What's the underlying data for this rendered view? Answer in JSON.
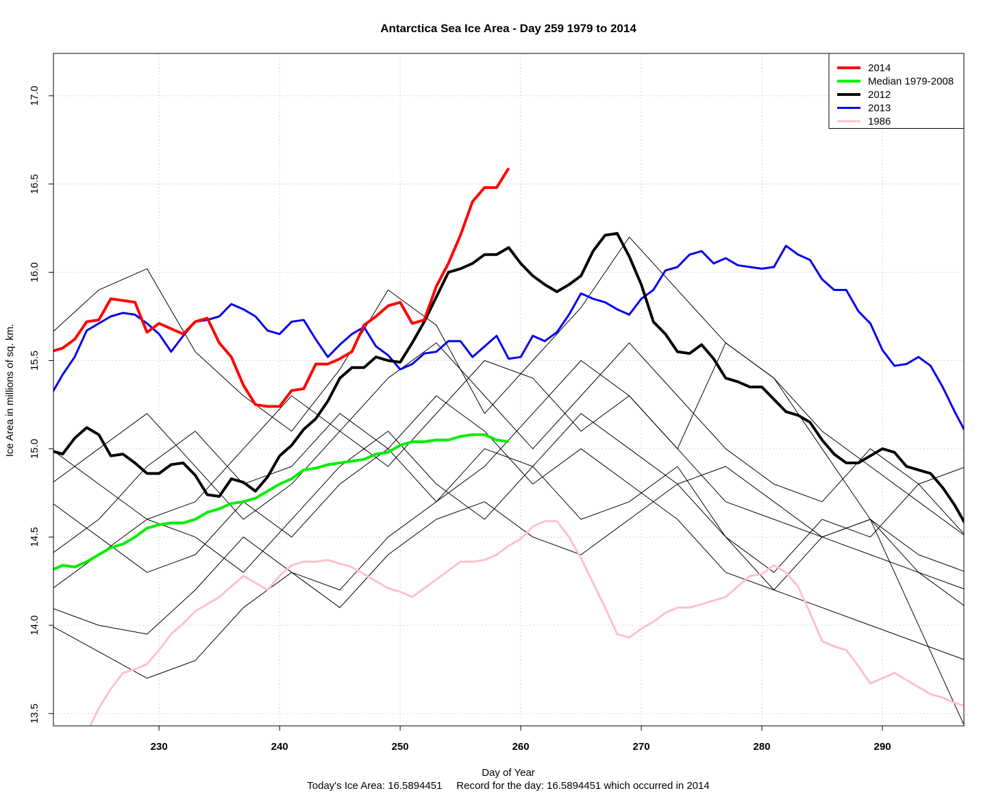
{
  "chart_data": {
    "type": "line",
    "title": "Antarctica Sea Ice Area - Day 259 1979 to 2014",
    "xlabel": "Day of Year",
    "ylabel": "Ice Area in millions of sq. km.",
    "subtitle": "Today's Ice Area: 16.5894451     Record for the day: 16.5894451 which occurred in 2014",
    "xlim": [
      221.24,
      296.76
    ],
    "ylim": [
      13.43,
      17.24
    ],
    "xticks": [
      230,
      240,
      250,
      260,
      270,
      280,
      290
    ],
    "yticks": [
      13.5,
      {
        "value": 14,
        "label": "14.0"
      },
      14.5,
      {
        "value": 15,
        "label": "15.0"
      },
      15.5,
      {
        "value": 16,
        "label": "16.0"
      },
      16.5,
      {
        "value": 17,
        "label": "17.0"
      }
    ],
    "grid": true,
    "legend": "top-right",
    "x": [
      221,
      222,
      223,
      224,
      225,
      226,
      227,
      228,
      229,
      230,
      231,
      232,
      233,
      234,
      235,
      236,
      237,
      238,
      239,
      240,
      241,
      242,
      243,
      244,
      245,
      246,
      247,
      248,
      249,
      250,
      251,
      252,
      253,
      254,
      255,
      256,
      257,
      258,
      259,
      260,
      261,
      262,
      263,
      264,
      265,
      266,
      267,
      268,
      269,
      270,
      271,
      272,
      273,
      274,
      275,
      276,
      277,
      278,
      279,
      280,
      281,
      282,
      283,
      284,
      285,
      286,
      287,
      288,
      289,
      290,
      291,
      292,
      293,
      294,
      295,
      296,
      297
    ],
    "background_series": [
      {
        "color": "#000000",
        "x": [
          221,
          225,
          229,
          233,
          237,
          241,
          245,
          249,
          253,
          257,
          261,
          265,
          269,
          273,
          277,
          281,
          285,
          289,
          293,
          297
        ],
        "values": [
          15.65,
          15.9,
          16.02,
          15.55,
          15.3,
          15.1,
          15.45,
          15.9,
          15.7,
          15.2,
          15.5,
          15.8,
          16.2,
          15.9,
          15.6,
          15.4,
          15.1,
          14.9,
          14.7,
          14.5
        ]
      },
      {
        "color": "#000000",
        "x": [
          221,
          225,
          229,
          233,
          237,
          241,
          245,
          249,
          253,
          257,
          261,
          265,
          269,
          273,
          277,
          281,
          285,
          289,
          293,
          297
        ],
        "values": [
          15.0,
          14.8,
          14.6,
          14.7,
          15.0,
          15.3,
          15.1,
          14.9,
          15.2,
          15.5,
          15.4,
          15.1,
          15.3,
          15.0,
          14.7,
          14.6,
          14.5,
          14.4,
          14.3,
          14.2
        ]
      },
      {
        "color": "#000000",
        "x": [
          221,
          225,
          229,
          233,
          237,
          241,
          245,
          249,
          253,
          257,
          261,
          265,
          269,
          273,
          277,
          281,
          285,
          289,
          293,
          297
        ],
        "values": [
          14.2,
          14.4,
          14.6,
          14.5,
          14.3,
          14.6,
          14.9,
          15.1,
          14.8,
          14.6,
          14.9,
          15.2,
          15.0,
          14.8,
          14.9,
          14.7,
          14.5,
          14.6,
          14.3,
          14.1
        ]
      },
      {
        "color": "#000000",
        "x": [
          221,
          225,
          229,
          233,
          237,
          241,
          245,
          249,
          253,
          257,
          261,
          265,
          269,
          273,
          277,
          281,
          285,
          289,
          293,
          297
        ],
        "values": [
          14.0,
          13.85,
          13.7,
          13.8,
          14.1,
          14.3,
          14.2,
          14.5,
          14.7,
          14.9,
          15.2,
          15.5,
          15.3,
          15.0,
          15.6,
          15.4,
          15.0,
          14.6,
          14.0,
          13.4
        ]
      },
      {
        "color": "#000000",
        "x": [
          221,
          225,
          229,
          233,
          237,
          241,
          245,
          249,
          253,
          257,
          261,
          265,
          269,
          273,
          277,
          281,
          285,
          289,
          293,
          297
        ],
        "values": [
          14.7,
          14.5,
          14.3,
          14.4,
          14.7,
          14.5,
          14.8,
          15.0,
          14.7,
          15.0,
          14.9,
          14.6,
          14.7,
          14.9,
          14.5,
          14.3,
          14.6,
          14.5,
          14.8,
          14.9
        ]
      },
      {
        "color": "#000000",
        "x": [
          221,
          225,
          229,
          233,
          237,
          241,
          245,
          249,
          253,
          257,
          261,
          265,
          269,
          273,
          277,
          281,
          285,
          289,
          293,
          297
        ],
        "values": [
          14.4,
          14.6,
          14.9,
          15.1,
          14.8,
          14.9,
          15.2,
          15.0,
          15.3,
          15.1,
          14.8,
          15.0,
          14.8,
          14.6,
          14.3,
          14.2,
          14.1,
          14.0,
          13.9,
          13.8
        ]
      },
      {
        "color": "#000000",
        "x": [
          221,
          225,
          229,
          233,
          237,
          241,
          245,
          249,
          253,
          257,
          261,
          265,
          269,
          273,
          277,
          281,
          285,
          289,
          293,
          297
        ],
        "values": [
          14.1,
          14.0,
          13.95,
          14.2,
          14.5,
          14.3,
          14.1,
          14.4,
          14.6,
          14.7,
          14.5,
          14.4,
          14.6,
          14.8,
          14.5,
          14.2,
          14.5,
          14.6,
          14.4,
          14.3
        ]
      },
      {
        "color": "#000000",
        "x": [
          221,
          225,
          229,
          233,
          237,
          241,
          245,
          249,
          253,
          257,
          261,
          265,
          269,
          273,
          277,
          281,
          285,
          289,
          293,
          297
        ],
        "values": [
          14.8,
          15.0,
          15.2,
          14.9,
          14.6,
          14.8,
          15.1,
          15.4,
          15.6,
          15.3,
          15.0,
          15.3,
          15.6,
          15.3,
          15.0,
          14.8,
          14.7,
          15.0,
          14.8,
          14.5
        ]
      }
    ],
    "series": [
      {
        "name": "2014",
        "color": "#ff0000",
        "width": 4,
        "values": [
          15.55,
          15.57,
          15.62,
          15.72,
          15.73,
          15.85,
          15.84,
          15.83,
          15.66,
          15.71,
          15.68,
          15.65,
          15.72,
          15.74,
          15.6,
          15.52,
          15.36,
          15.25,
          15.24,
          15.24,
          15.33,
          15.34,
          15.48,
          15.48,
          15.51,
          15.55,
          15.7,
          15.75,
          15.81,
          15.83,
          15.71,
          15.73,
          15.92,
          16.05,
          16.21,
          16.4,
          16.48,
          16.48,
          16.5894451,
          null,
          null,
          null,
          null,
          null,
          null,
          null,
          null,
          null,
          null,
          null,
          null,
          null,
          null,
          null,
          null,
          null,
          null,
          null,
          null,
          null,
          null,
          null,
          null,
          null,
          null,
          null,
          null,
          null,
          null,
          null,
          null,
          null,
          null,
          null,
          null,
          null,
          null
        ]
      },
      {
        "name": "Median 1979-2008",
        "color": "#00ee00",
        "width": 4,
        "values": [
          14.31,
          14.34,
          14.33,
          14.36,
          14.4,
          14.44,
          14.46,
          14.5,
          14.55,
          14.57,
          14.58,
          14.58,
          14.6,
          14.64,
          14.66,
          14.69,
          14.7,
          14.72,
          14.76,
          14.8,
          14.83,
          14.88,
          14.89,
          14.91,
          14.92,
          14.93,
          14.94,
          14.97,
          14.98,
          15.02,
          15.04,
          15.04,
          15.05,
          15.05,
          15.07,
          15.08,
          15.08,
          15.05,
          15.04,
          null,
          null,
          null,
          null,
          null,
          null,
          null,
          null,
          null,
          null,
          null,
          null,
          null,
          null,
          null,
          null,
          null,
          null,
          null,
          null,
          null,
          null,
          null,
          null,
          null,
          null,
          null,
          null,
          null,
          null,
          null,
          null,
          null,
          null,
          null,
          null,
          null,
          null
        ]
      },
      {
        "name": "2012",
        "color": "#000000",
        "width": 4,
        "values": [
          14.99,
          14.97,
          15.06,
          15.12,
          15.08,
          14.96,
          14.97,
          14.92,
          14.86,
          14.86,
          14.91,
          14.92,
          14.85,
          14.74,
          14.73,
          14.83,
          14.81,
          14.76,
          14.84,
          14.96,
          15.02,
          15.11,
          15.17,
          15.27,
          15.4,
          15.46,
          15.46,
          15.52,
          15.5,
          15.49,
          15.6,
          15.72,
          15.86,
          16.0,
          16.02,
          16.05,
          16.1,
          16.1,
          16.14,
          16.05,
          15.98,
          15.93,
          15.89,
          15.93,
          15.98,
          16.12,
          16.21,
          16.22,
          16.09,
          15.93,
          15.72,
          15.65,
          15.55,
          15.54,
          15.59,
          15.51,
          15.4,
          15.38,
          15.35,
          15.35,
          15.28,
          15.21,
          15.19,
          15.15,
          15.05,
          14.97,
          14.92,
          14.92,
          14.96,
          15.0,
          14.98,
          14.9,
          14.88,
          14.86,
          14.78,
          14.68,
          14.56
        ]
      },
      {
        "name": "2013",
        "color": "#0000ee",
        "width": 3,
        "values": [
          15.3,
          15.42,
          15.52,
          15.67,
          15.71,
          15.75,
          15.77,
          15.76,
          15.71,
          15.65,
          15.55,
          15.64,
          15.72,
          15.73,
          15.75,
          15.82,
          15.79,
          15.75,
          15.67,
          15.65,
          15.72,
          15.73,
          15.62,
          15.52,
          15.59,
          15.65,
          15.69,
          15.58,
          15.53,
          15.45,
          15.48,
          15.54,
          15.55,
          15.61,
          15.61,
          15.52,
          15.58,
          15.64,
          15.51,
          15.52,
          15.64,
          15.61,
          15.66,
          15.76,
          15.88,
          15.85,
          15.83,
          15.79,
          15.76,
          15.85,
          15.9,
          16.01,
          16.03,
          16.1,
          16.12,
          16.05,
          16.08,
          16.04,
          16.03,
          16.02,
          16.03,
          16.15,
          16.1,
          16.07,
          15.96,
          15.9,
          15.9,
          15.78,
          15.71,
          15.56,
          15.47,
          15.48,
          15.52,
          15.47,
          15.35,
          15.21,
          15.08
        ]
      },
      {
        "name": "1986",
        "color": "#ffc0cb",
        "width": 3,
        "values": [
          null,
          null,
          null,
          13.39,
          13.53,
          13.64,
          13.73,
          13.75,
          13.78,
          13.86,
          13.95,
          14.01,
          14.08,
          14.12,
          14.16,
          14.22,
          14.28,
          14.24,
          14.2,
          14.28,
          14.34,
          14.36,
          14.36,
          14.37,
          14.35,
          14.33,
          14.29,
          14.25,
          14.21,
          14.19,
          14.16,
          14.21,
          14.26,
          14.31,
          14.36,
          14.36,
          14.37,
          14.4,
          14.45,
          14.49,
          14.56,
          14.59,
          14.59,
          14.5,
          14.38,
          14.24,
          14.1,
          13.95,
          13.93,
          13.98,
          14.02,
          14.07,
          14.1,
          14.1,
          14.12,
          14.14,
          14.16,
          14.22,
          14.28,
          14.29,
          14.34,
          14.3,
          14.22,
          14.07,
          13.91,
          13.88,
          13.86,
          13.77,
          13.67,
          13.7,
          13.73,
          13.69,
          13.65,
          13.61,
          13.59,
          13.56,
          13.54
        ]
      }
    ]
  }
}
